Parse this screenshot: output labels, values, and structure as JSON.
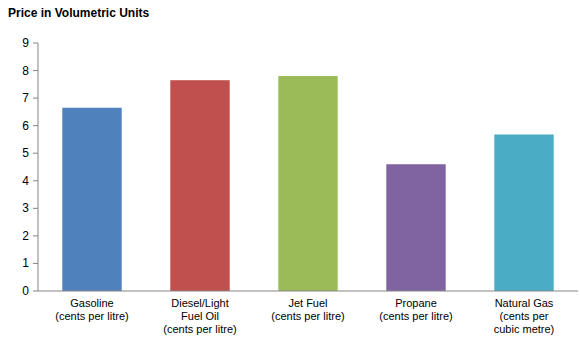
{
  "chart_data": {
    "type": "bar",
    "title": "Price in Volumetric Units",
    "categories": [
      "Gasoline\n(cents per litre)",
      "Diesel/Light\nFuel Oil\n(cents per litre)",
      "Jet Fuel\n(cents per litre)",
      "Propane\n(cents per litre)",
      "Natural Gas\n(cents per\ncubic metre)"
    ],
    "values": [
      6.65,
      7.65,
      7.8,
      4.6,
      5.68
    ],
    "colors": [
      "#4f81bd",
      "#c0504d",
      "#9bbb59",
      "#8064a2",
      "#4bacc6"
    ],
    "ylim": [
      0,
      9
    ],
    "yticks": [
      0,
      1,
      2,
      3,
      4,
      5,
      6,
      7,
      8,
      9
    ],
    "grid": false
  }
}
